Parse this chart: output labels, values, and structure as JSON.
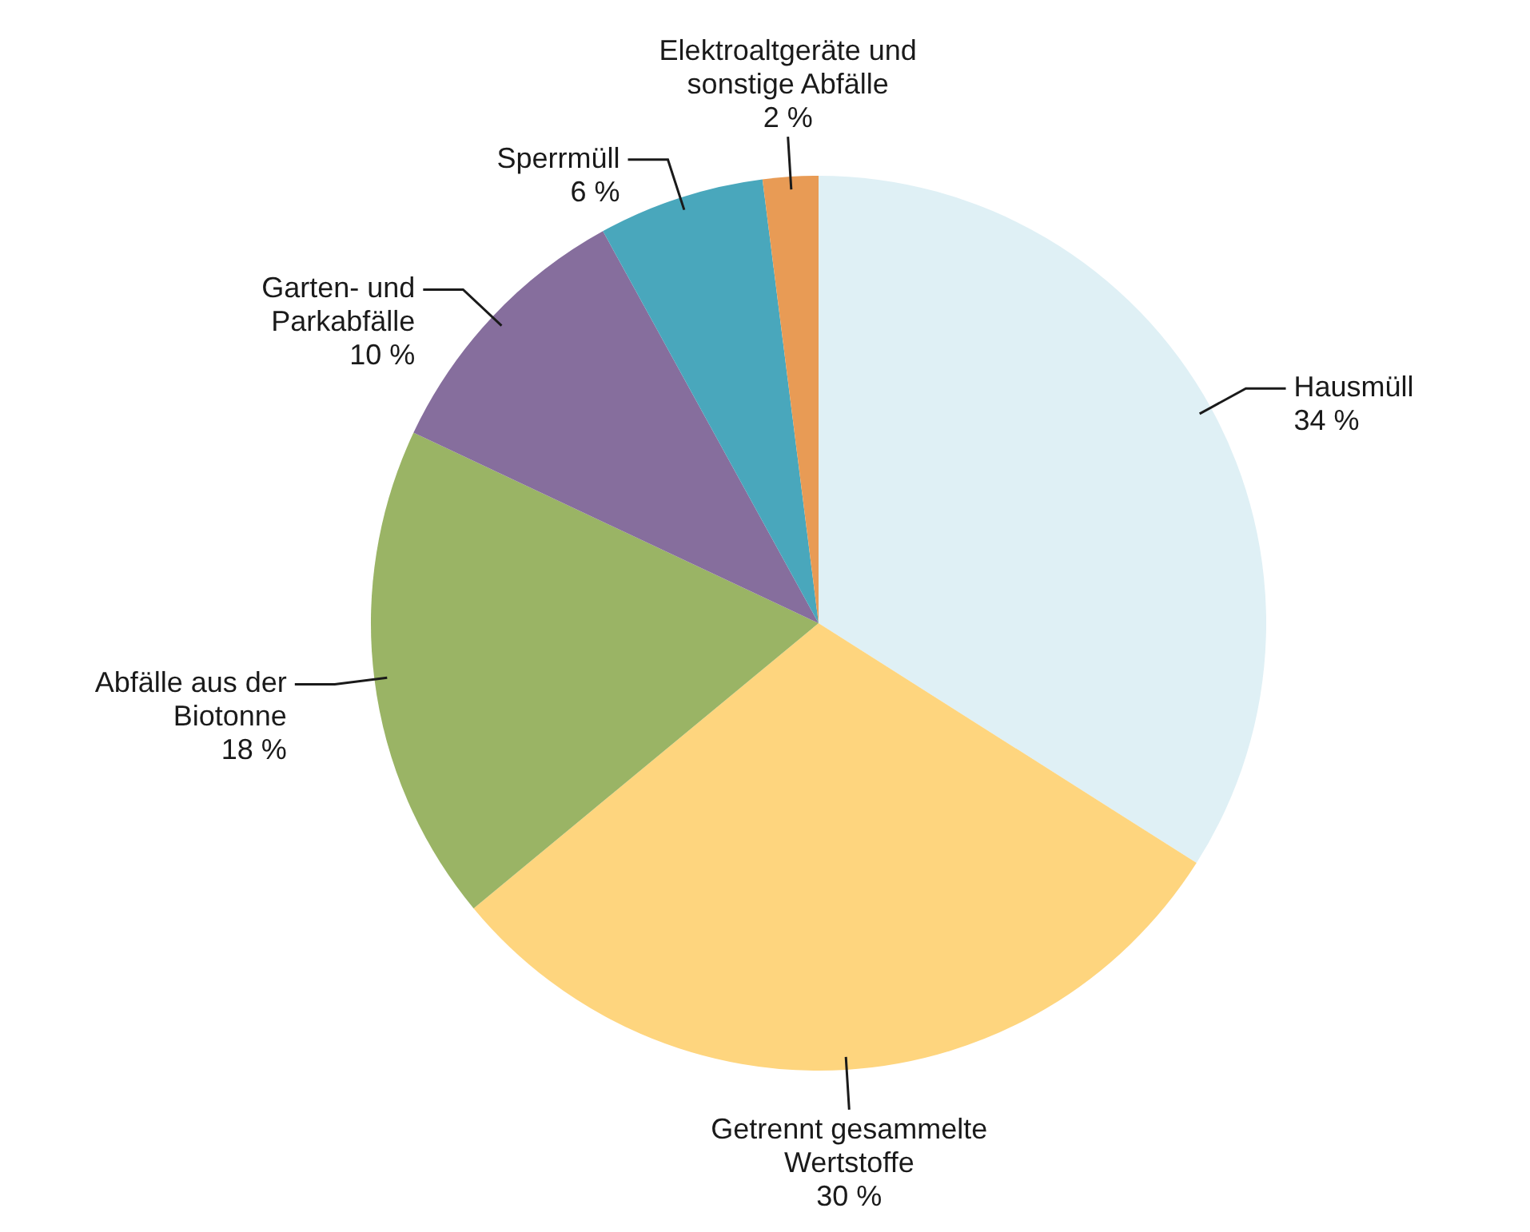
{
  "chart_data": {
    "type": "pie",
    "categories": [
      "Hausmüll",
      "Getrennt gesammelte Wertstoffe",
      "Abfälle aus der Biotonne",
      "Garten- und Parkabfälle",
      "Sperrmüll",
      "Elektroaltgeräte und sonstige Abfälle"
    ],
    "values": [
      34,
      30,
      18,
      10,
      6,
      2
    ],
    "value_labels": [
      "34 %",
      "30 %",
      "18 %",
      "10 %",
      "6 %",
      "2 %"
    ],
    "colors": [
      "#dff0f5",
      "#fed57e",
      "#9ab465",
      "#866e9d",
      "#49a7bc",
      "#e89b55"
    ],
    "legend": false
  }
}
